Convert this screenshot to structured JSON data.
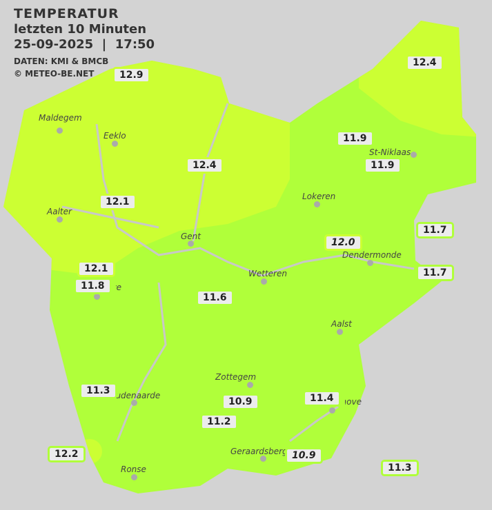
{
  "header": {
    "title": "TEMPERATUR",
    "subtitle": "letzten 10 Minuten",
    "datetime": "25-09-2025  |  17:50",
    "source": "DATEN: KMI & BMCB",
    "copyright": "© METEO-BE.NET"
  },
  "colors": {
    "background": "#d3d3d3",
    "zone_12_to_13": "#ccff33",
    "zone_11_to_12": "#b0ff3a",
    "river": "#c8c8c8"
  },
  "cities": [
    "Maldegem",
    "Eeklo",
    "Aalter",
    "Gent",
    "Lokeren",
    "St-Niklaas",
    "Dendermonde",
    "Wetteren",
    "Aalst",
    "Zottegem",
    "Oudenaarde",
    "Ronse",
    "Geraardsbergen",
    "Ninove",
    "Deinze"
  ],
  "stations": [
    "12.9",
    "12.4",
    "11.9",
    "11.9",
    "12.4",
    "12.1",
    "11.7",
    "12.0",
    "11.7",
    "12.1",
    "11.8",
    "11.6",
    "11.3",
    "10.9",
    "11.4",
    "11.2",
    "12.2",
    "10.9",
    "11.3"
  ]
}
